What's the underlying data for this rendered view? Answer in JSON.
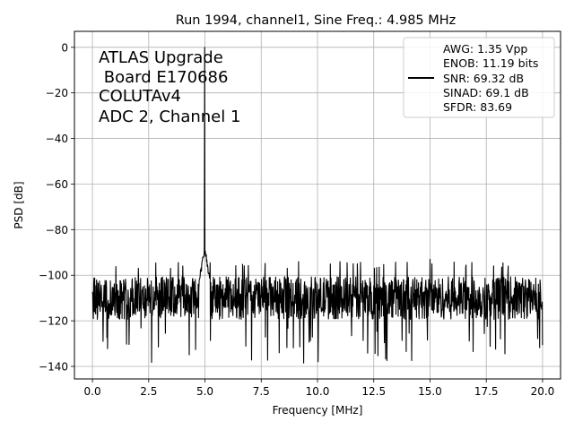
{
  "chart_data": {
    "type": "line",
    "title": "Run 1994, channel1, Sine Freq.: 4.985 MHz",
    "xlabel": "Frequency [MHz]",
    "ylabel": "PSD [dB]",
    "xlim": [
      -0.8,
      20.8
    ],
    "ylim": [
      -145.5,
      7
    ],
    "xticks": [
      0.0,
      2.5,
      5.0,
      7.5,
      10.0,
      12.5,
      15.0,
      17.5,
      20.0
    ],
    "xtick_labels": [
      "0.0",
      "2.5",
      "5.0",
      "7.5",
      "10.0",
      "12.5",
      "15.0",
      "17.5",
      "20.0"
    ],
    "yticks": [
      0,
      -20,
      -40,
      -60,
      -80,
      -100,
      -120,
      -140
    ],
    "ytick_labels": [
      "0",
      "−20",
      "−40",
      "−60",
      "−80",
      "−100",
      "−120",
      "−140"
    ],
    "grid": true,
    "legend_position": "top-right",
    "annotation": [
      "ATLAS Upgrade",
      " Board E170686",
      "COLUTAv4",
      "ADC 2, Channel 1"
    ],
    "series": [
      {
        "name": "AWG: 1.35 Vpp\nENOB: 11.19 bits\nSNR: 69.32 dB\nSINAD: 69.1 dB\nSFDR: 83.69",
        "legend_lines": [
          "AWG: 1.35 Vpp",
          "ENOB: 11.19 bits",
          "SNR: 69.32 dB",
          "SINAD: 69.1 dB",
          "SFDR: 83.69"
        ],
        "color": "#000000",
        "x_range": [
          0.0,
          20.0
        ],
        "noise_floor_db": -110,
        "noise_band_db": [
          -122,
          -97
        ],
        "noise_min_db": -139,
        "peaks": [
          {
            "x": 4.985,
            "y": 0
          },
          {
            "x": 15.0,
            "y": -93
          }
        ],
        "peak_skirt_db": -88
      }
    ]
  }
}
